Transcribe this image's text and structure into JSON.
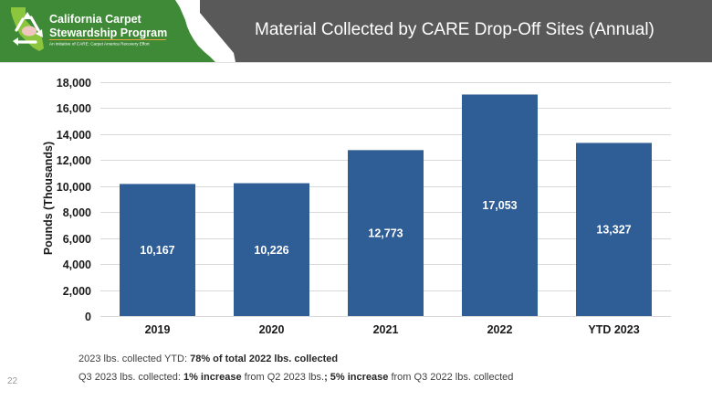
{
  "header": {
    "logo": {
      "line1": "California Carpet",
      "line2": "Stewardship Program",
      "tagline": "An initiative of CARE: Carpet America Recovery Effort"
    },
    "title": "Material Collected by CARE Drop-Off Sites (Annual)"
  },
  "colors": {
    "header_green": "#3F8A36",
    "header_grey": "#595959",
    "bar": "#2F5D95",
    "accent_orange": "#E8A33D",
    "logo_light_green": "#8CC63E"
  },
  "chart_data": {
    "type": "bar",
    "title": "Material Collected by CARE Drop-Off Sites (Annual)",
    "categories": [
      "2019",
      "2020",
      "2021",
      "2022",
      "YTD 2023"
    ],
    "values": [
      10167,
      10226,
      12773,
      17053,
      13327
    ],
    "data_labels": [
      "10,167",
      "10,226",
      "12,773",
      "17,053",
      "13,327"
    ],
    "xlabel": "",
    "ylabel": "Pounds (Thousands)",
    "ylim": [
      0,
      18000
    ],
    "yticks": [
      0,
      2000,
      4000,
      6000,
      8000,
      10000,
      12000,
      14000,
      16000,
      18000
    ],
    "ytick_labels": [
      "0",
      "2,000",
      "4,000",
      "6,000",
      "8,000",
      "10,000",
      "12,000",
      "14,000",
      "16,000",
      "18,000"
    ],
    "grid": true,
    "legend": "none"
  },
  "footnotes": [
    {
      "parts": [
        {
          "text": "2023 lbs. collected YTD: ",
          "bold": false
        },
        {
          "text": "78% of total 2022 lbs. collected",
          "bold": true
        }
      ]
    },
    {
      "parts": [
        {
          "text": "Q3 2023 lbs. collected: ",
          "bold": false
        },
        {
          "text": "1% increase",
          "bold": true
        },
        {
          "text": " from Q2 2023 lbs.",
          "bold": false
        },
        {
          "text": "; 5% increase",
          "bold": true
        },
        {
          "text": " from Q3 2022 lbs. collected",
          "bold": false
        }
      ]
    }
  ],
  "page_number": "22"
}
